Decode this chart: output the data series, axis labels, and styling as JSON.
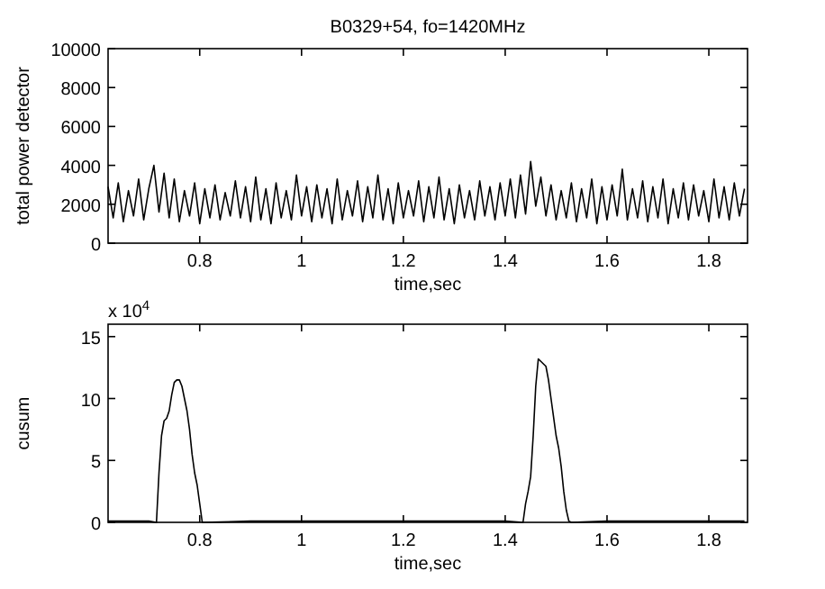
{
  "chart_data": [
    {
      "type": "line",
      "title": "B0329+54, fo=1420MHz",
      "xlabel": "time,sec",
      "ylabel": "total power detector",
      "xlim": [
        0.62,
        1.876
      ],
      "xticks": [
        0.8,
        1,
        1.2,
        1.4,
        1.6,
        1.8
      ],
      "ylim": [
        0,
        10000
      ],
      "yticks": [
        0,
        2000,
        4000,
        6000,
        8000,
        10000
      ],
      "series": [
        {
          "color": "#000000",
          "x": [
            0.62,
            0.63,
            0.64,
            0.65,
            0.66,
            0.67,
            0.68,
            0.69,
            0.7,
            0.71,
            0.72,
            0.73,
            0.74,
            0.75,
            0.76,
            0.77,
            0.78,
            0.79,
            0.8,
            0.81,
            0.82,
            0.83,
            0.84,
            0.85,
            0.86,
            0.87,
            0.88,
            0.89,
            0.9,
            0.91,
            0.92,
            0.93,
            0.94,
            0.95,
            0.96,
            0.97,
            0.98,
            0.99,
            1,
            1.01,
            1.02,
            1.03,
            1.04,
            1.05,
            1.06,
            1.07,
            1.08,
            1.09,
            1.1,
            1.11,
            1.12,
            1.13,
            1.14,
            1.15,
            1.16,
            1.17,
            1.18,
            1.19,
            1.2,
            1.21,
            1.22,
            1.23,
            1.24,
            1.25,
            1.26,
            1.27,
            1.28,
            1.29,
            1.3,
            1.31,
            1.32,
            1.33,
            1.34,
            1.35,
            1.36,
            1.37,
            1.38,
            1.39,
            1.4,
            1.41,
            1.42,
            1.43,
            1.44,
            1.45,
            1.46,
            1.47,
            1.48,
            1.49,
            1.5,
            1.51,
            1.52,
            1.53,
            1.54,
            1.55,
            1.56,
            1.57,
            1.58,
            1.59,
            1.6,
            1.61,
            1.62,
            1.63,
            1.64,
            1.65,
            1.66,
            1.67,
            1.68,
            1.69,
            1.7,
            1.71,
            1.72,
            1.73,
            1.74,
            1.75,
            1.76,
            1.77,
            1.78,
            1.79,
            1.8,
            1.81,
            1.82,
            1.83,
            1.84,
            1.85,
            1.86,
            1.87
          ],
          "values": [
            2900,
            1300,
            3100,
            1100,
            2700,
            1400,
            3300,
            1200,
            2800,
            4000,
            1600,
            3600,
            1300,
            3300,
            1100,
            2700,
            1400,
            3100,
            1000,
            2800,
            1300,
            3000,
            1200,
            2600,
            1400,
            3200,
            1300,
            2900,
            1100,
            3400,
            1200,
            2800,
            1000,
            3100,
            1300,
            2700,
            1200,
            3500,
            1400,
            2900,
            1100,
            3000,
            1300,
            2800,
            1000,
            3300,
            1200,
            2700,
            1400,
            3200,
            1100,
            2900,
            1300,
            3500,
            1200,
            2800,
            1000,
            3100,
            1300,
            2700,
            1400,
            3200,
            1100,
            2900,
            1300,
            3400,
            1200,
            2800,
            1000,
            3000,
            1300,
            2700,
            1200,
            3200,
            1400,
            2900,
            1200,
            3100,
            1400,
            3300,
            1300,
            3500,
            1500,
            4200,
            1900,
            3400,
            1400,
            3000,
            1200,
            2700,
            1300,
            3100,
            1100,
            2800,
            1300,
            3300,
            1000,
            2900,
            1200,
            3000,
            1400,
            3800,
            1200,
            2800,
            1300,
            3200,
            1100,
            2900,
            1300,
            3300,
            1000,
            2800,
            1300,
            3100,
            1200,
            3000,
            1400,
            2700,
            1100,
            3300,
            1300,
            2900,
            1200,
            3100,
            1400,
            2800
          ]
        }
      ]
    },
    {
      "type": "line",
      "xlabel": "time,sec",
      "ylabel": "cusum",
      "annotations": [
        "x 10$^{4}$"
      ],
      "xlim": [
        0.62,
        1.876
      ],
      "xticks": [
        0.8,
        1,
        1.2,
        1.4,
        1.6,
        1.8
      ],
      "ylim": [
        0,
        16
      ],
      "yticks": [
        0,
        5,
        10,
        15
      ],
      "series": [
        {
          "color": "#000000",
          "x": [
            0.62,
            0.7,
            0.715,
            0.72,
            0.725,
            0.73,
            0.735,
            0.74,
            0.745,
            0.75,
            0.755,
            0.76,
            0.765,
            0.77,
            0.775,
            0.78,
            0.785,
            0.79,
            0.795,
            0.8,
            0.805,
            0.9,
            1.0,
            1.1,
            1.2,
            1.3,
            1.4,
            1.435,
            1.44,
            1.445,
            1.45,
            1.455,
            1.46,
            1.465,
            1.47,
            1.475,
            1.48,
            1.485,
            1.49,
            1.495,
            1.5,
            1.505,
            1.51,
            1.515,
            1.52,
            1.525,
            1.53,
            1.6,
            1.7,
            1.8,
            1.87
          ],
          "values": [
            0.1,
            0.1,
            0,
            4,
            7,
            8.2,
            8.4,
            9,
            10.3,
            11.3,
            11.5,
            11.5,
            11,
            10,
            9,
            7.5,
            5.5,
            4,
            3,
            1.5,
            0,
            0.1,
            0.1,
            0.1,
            0.1,
            0.1,
            0.1,
            0,
            1.5,
            2.5,
            3.7,
            7,
            11,
            13.2,
            13,
            12.8,
            12.6,
            11.5,
            10,
            8.5,
            7,
            6,
            4.5,
            2.5,
            1,
            0.1,
            0,
            0.1,
            0.1,
            0.1,
            0.1
          ]
        }
      ]
    }
  ]
}
